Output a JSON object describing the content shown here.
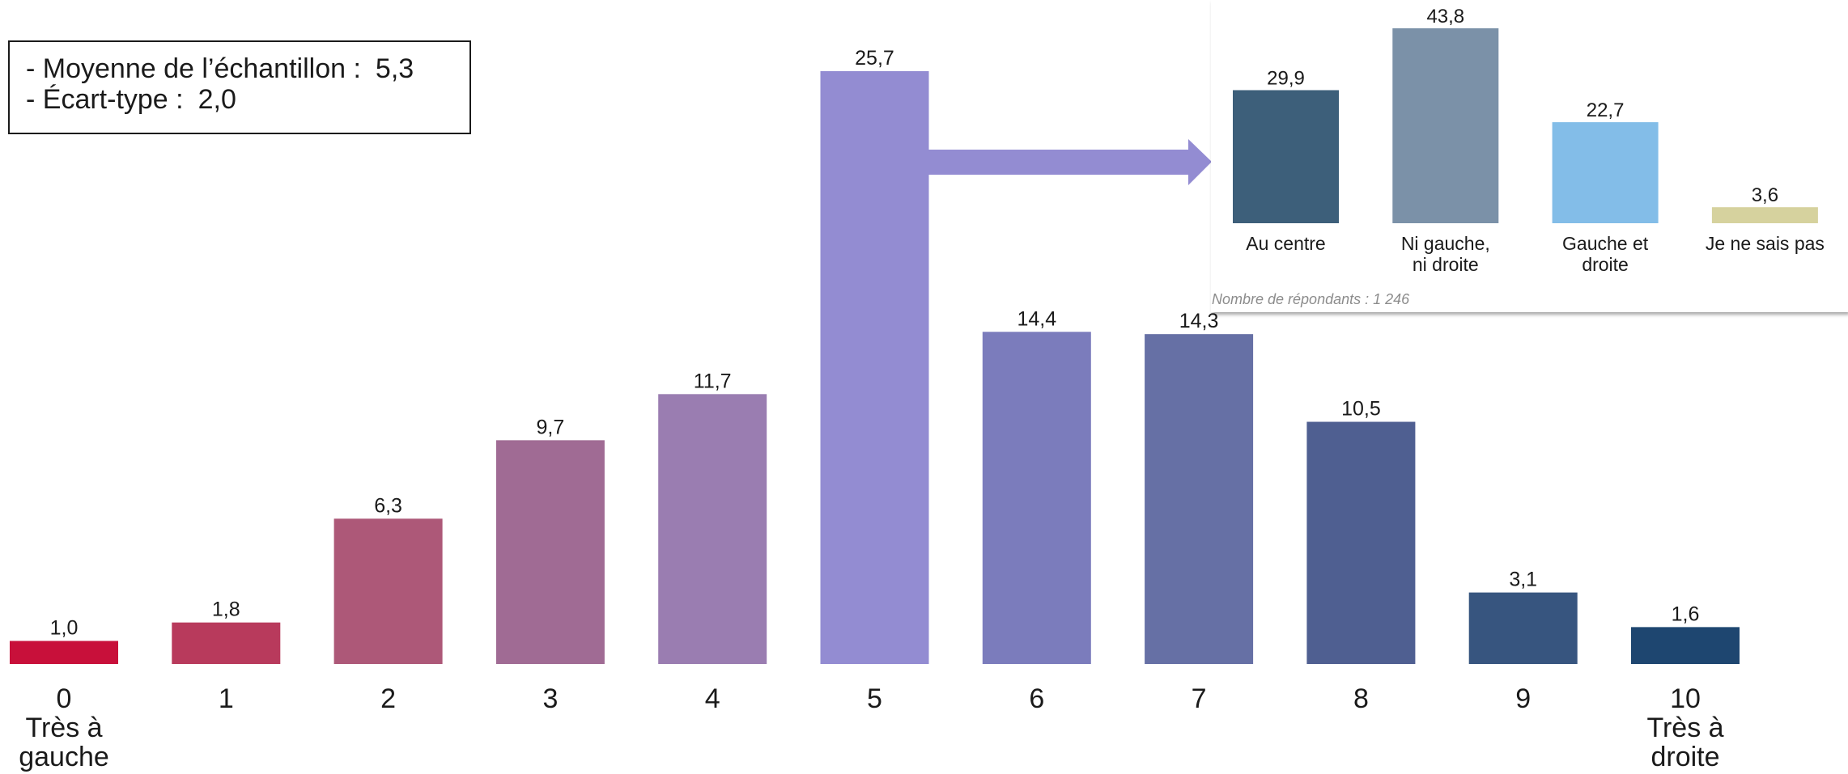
{
  "stats_box": {
    "mean_label": "- Moyenne de l’échantillon :",
    "mean_value": "5,3",
    "sd_label": "- Écart-type :",
    "sd_value": "2,0"
  },
  "source_note": "Nombre de répondants : 1 246",
  "chart_data": [
    {
      "type": "bar",
      "categories": [
        "0",
        "1",
        "2",
        "3",
        "4",
        "5",
        "6",
        "7",
        "8",
        "9",
        "10"
      ],
      "category_sublabels": [
        "Très à gauche",
        "",
        "",
        "",
        "",
        "",
        "",
        "",
        "",
        "",
        "Très à droite"
      ],
      "values": [
        1.0,
        1.8,
        6.3,
        9.7,
        11.7,
        25.7,
        14.4,
        14.3,
        10.5,
        3.1,
        1.6
      ],
      "data_labels": [
        "1,0",
        "1,8",
        "6,3",
        "9,7",
        "11,7",
        "25,7",
        "14,4",
        "14,3",
        "10,5",
        "3,1",
        "1,6"
      ],
      "colors": [
        "#c8103a",
        "#b83a5c",
        "#ad5878",
        "#a06b94",
        "#9a7db1",
        "#938cd2",
        "#7b7cbc",
        "#6670a5",
        "#4f5f91",
        "#37557f",
        "#1e4670"
      ],
      "ylim": [
        0,
        26
      ],
      "grid": false,
      "title": "",
      "xlabel": "",
      "ylabel": ""
    },
    {
      "type": "bar",
      "categories": [
        "Au centre",
        "Ni gauche, ni droite",
        "Gauche et droite",
        "Je ne sais pas"
      ],
      "category_lines": [
        [
          "Au centre"
        ],
        [
          "Ni gauche,",
          "ni droite"
        ],
        [
          "Gauche et",
          "droite"
        ],
        [
          "Je ne sais pas"
        ]
      ],
      "values": [
        29.9,
        43.8,
        22.7,
        3.6
      ],
      "data_labels": [
        "29,9",
        "43,8",
        "22,7",
        "3,6"
      ],
      "colors": [
        "#3d5f7a",
        "#7b91a8",
        "#83bde8",
        "#d6d29e"
      ],
      "ylim": [
        0,
        44
      ],
      "grid": false,
      "title": "",
      "xlabel": "",
      "ylabel": ""
    }
  ],
  "arrow_color": "#938cd2"
}
